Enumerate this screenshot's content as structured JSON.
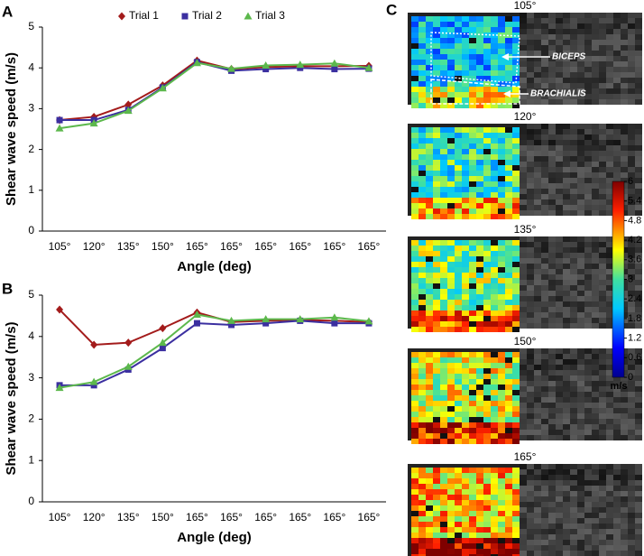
{
  "chart_data": [
    {
      "type": "line",
      "panel_label": "A",
      "x_label": "Angle (deg)",
      "y_label": "Shear wave speed (m/s)",
      "categories": [
        "105°",
        "120°",
        "135°",
        "150°",
        "165°",
        "165°",
        "165°",
        "165°",
        "165°",
        "165°"
      ],
      "ylim": [
        0,
        5
      ],
      "yticks": [
        0,
        1,
        2,
        3,
        4,
        5
      ],
      "legend": "top",
      "series": [
        {
          "name": "Trial 1",
          "color": "#a31b1b",
          "marker": "diamond",
          "values": [
            2.72,
            2.8,
            3.1,
            3.57,
            4.18,
            3.97,
            4.02,
            4.04,
            4.04,
            4.05
          ]
        },
        {
          "name": "Trial 2",
          "color": "#3b2fa0",
          "marker": "square",
          "values": [
            2.72,
            2.72,
            2.97,
            3.52,
            4.14,
            3.93,
            3.97,
            4.0,
            3.97,
            3.98
          ]
        },
        {
          "name": "Trial 3",
          "color": "#5cb84c",
          "marker": "triangle",
          "values": [
            2.52,
            2.64,
            2.95,
            3.5,
            4.12,
            3.98,
            4.06,
            4.08,
            4.11,
            4.0
          ]
        }
      ]
    },
    {
      "type": "line",
      "panel_label": "B",
      "x_label": "Angle (deg)",
      "y_label": "Shear wave speed (m/s)",
      "categories": [
        "105°",
        "120°",
        "135°",
        "150°",
        "165°",
        "165°",
        "165°",
        "165°",
        "165°",
        "165°"
      ],
      "ylim": [
        0,
        5
      ],
      "yticks": [
        0,
        1,
        2,
        3,
        4,
        5
      ],
      "series": [
        {
          "color": "#a31b1b",
          "marker": "diamond",
          "values": [
            4.65,
            3.8,
            3.85,
            4.2,
            4.58,
            4.35,
            4.38,
            4.4,
            4.38,
            4.35
          ]
        },
        {
          "color": "#3b2fa0",
          "marker": "square",
          "values": [
            2.82,
            2.82,
            3.2,
            3.72,
            4.32,
            4.28,
            4.32,
            4.38,
            4.32,
            4.32
          ]
        },
        {
          "color": "#5cb84c",
          "marker": "triangle",
          "values": [
            2.76,
            2.9,
            3.27,
            3.85,
            4.53,
            4.38,
            4.42,
            4.42,
            4.46,
            4.37
          ]
        }
      ]
    },
    {
      "type": "elastography",
      "panel_label": "C",
      "images": [
        "105°",
        "120°",
        "135°",
        "150°",
        "165°"
      ],
      "annotations": [
        "BICEPS",
        "BRACHIALIS"
      ],
      "colorbar_label": "m/s",
      "clim": [
        0,
        6
      ],
      "cticks": [
        0,
        0.6,
        1.2,
        1.8,
        2.4,
        3,
        3.6,
        4.2,
        4.8,
        5.4,
        6
      ]
    }
  ]
}
